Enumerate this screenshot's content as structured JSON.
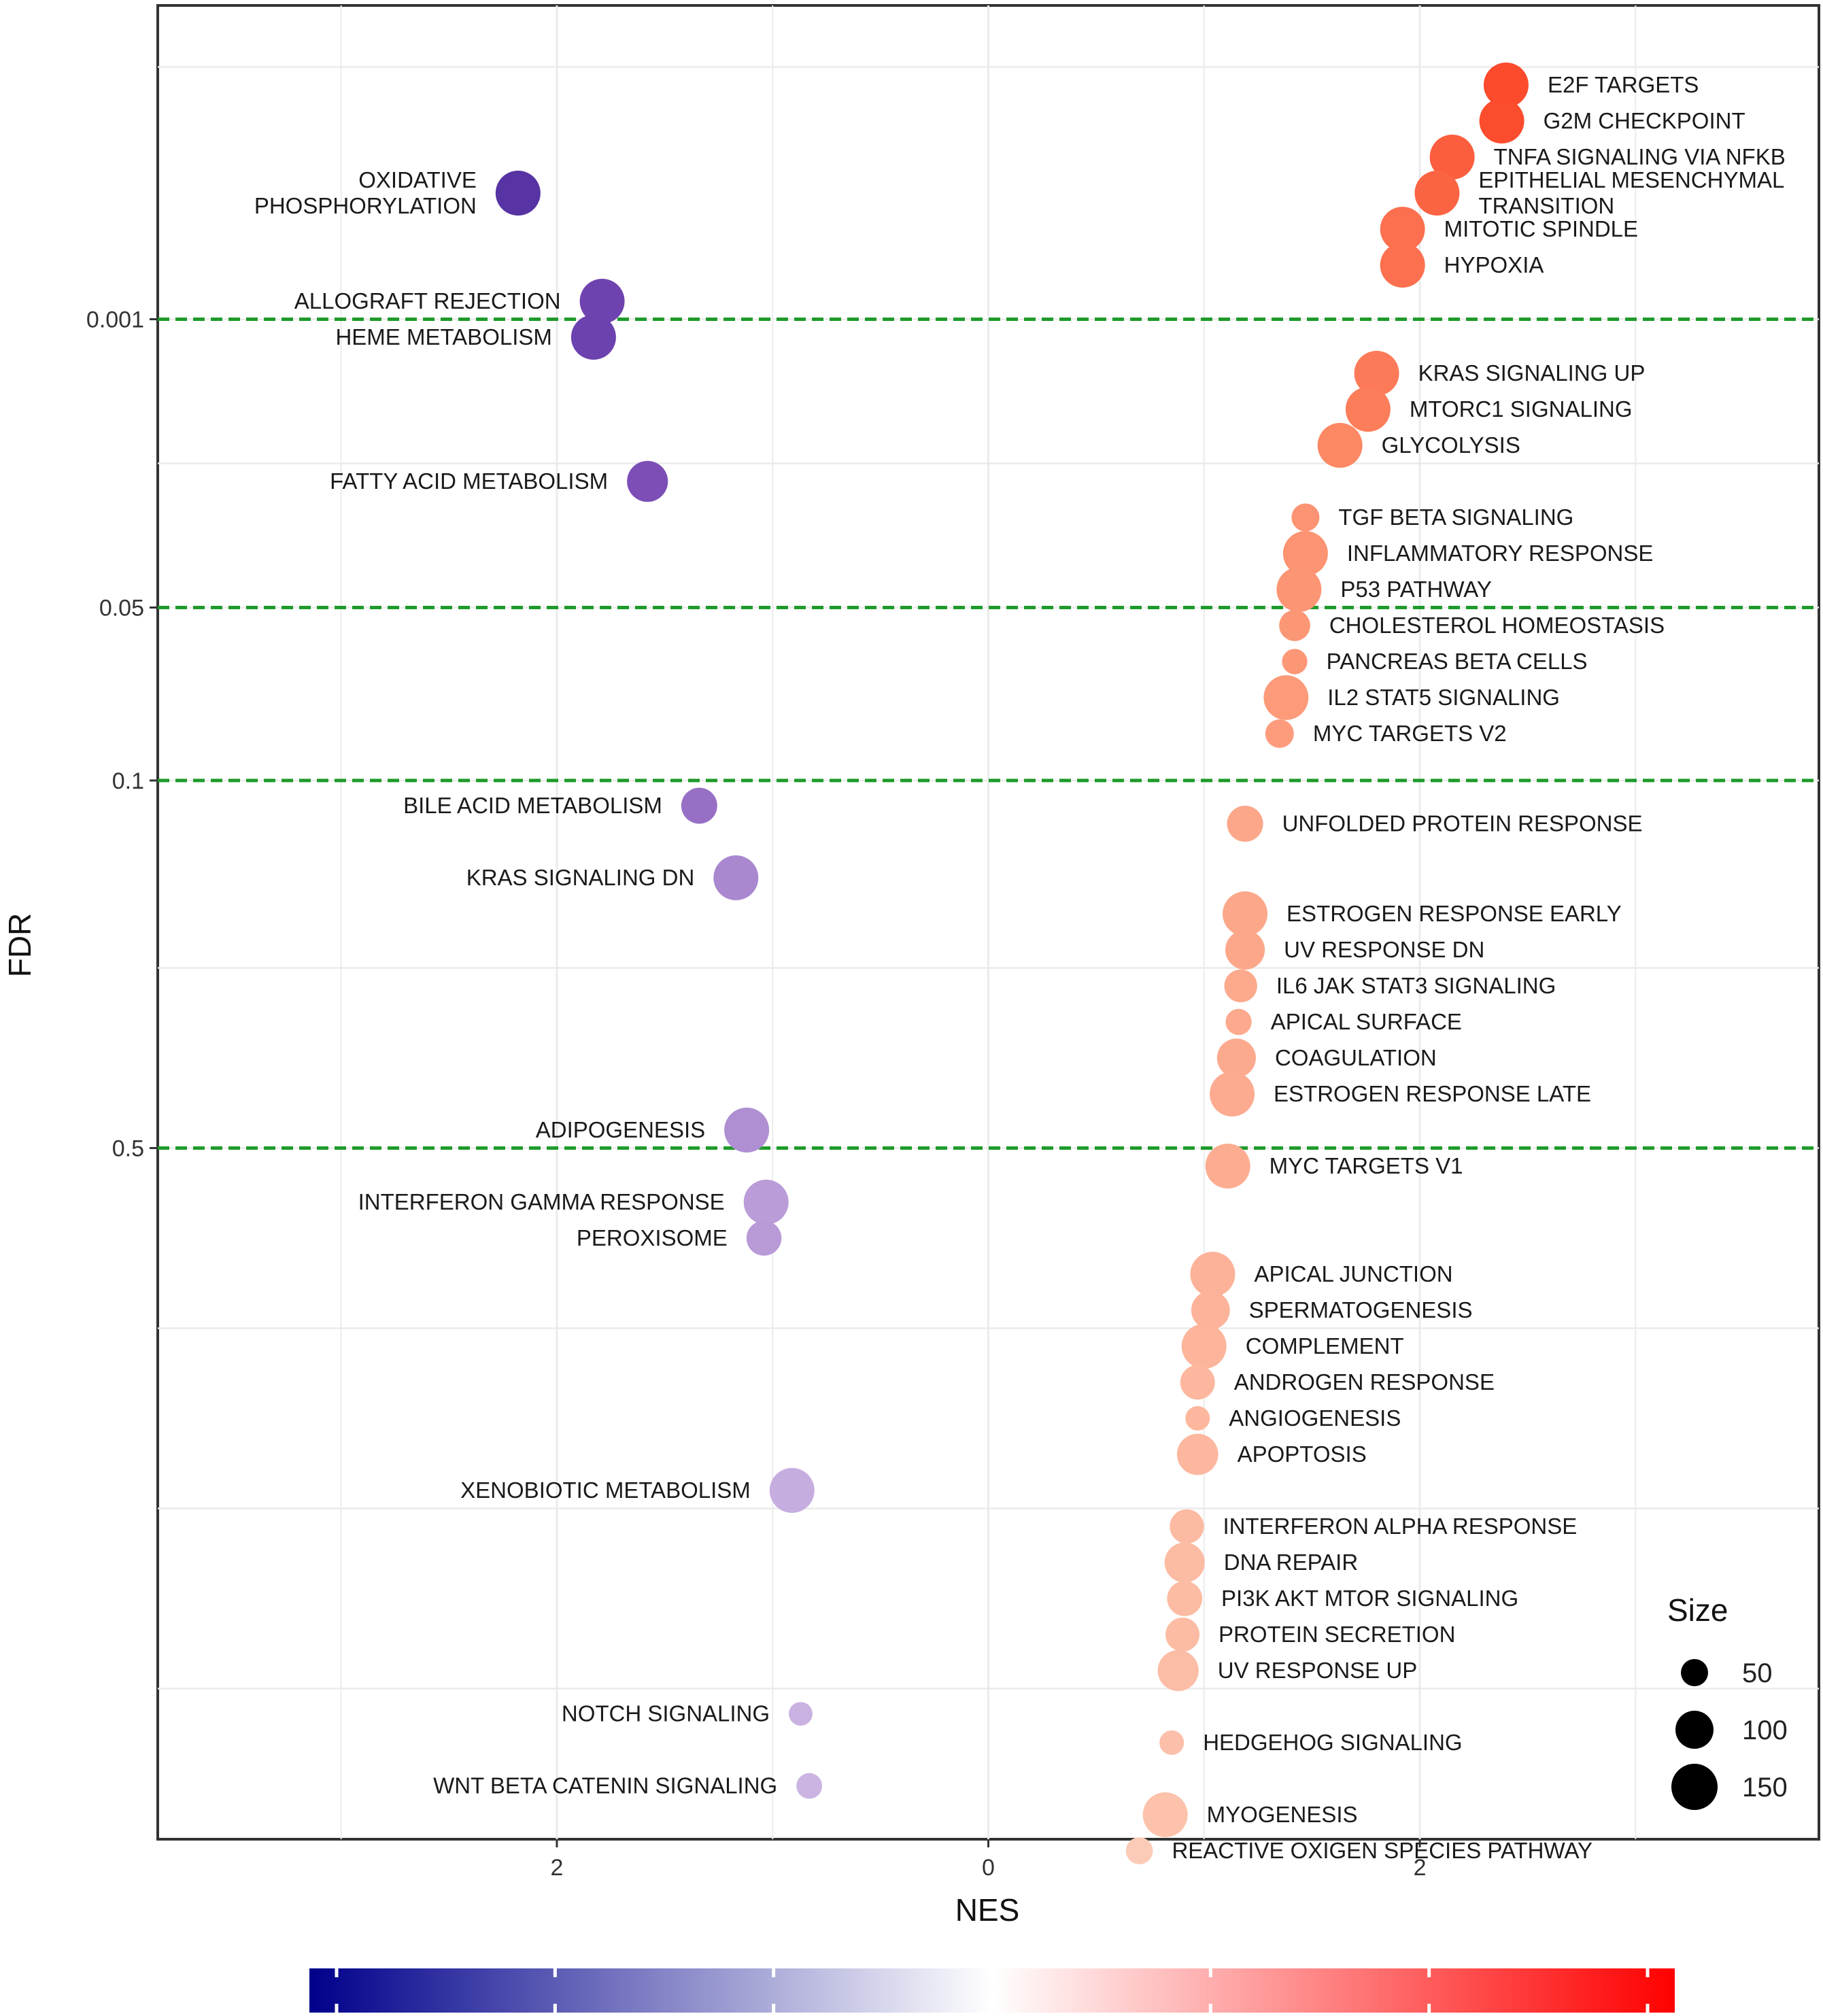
{
  "chart_data": {
    "type": "scatter",
    "xlabel": "NES",
    "ylabel": "FDR",
    "x_tick_labels": [
      "2",
      "0",
      "2"
    ],
    "x_tick_values": [
      -2,
      0,
      2
    ],
    "x_range": [
      -3.85,
      3.85
    ],
    "y_tick_labels": [
      "0.001",
      "0.05",
      "0.1",
      "0.5"
    ],
    "y_tick_values": [
      0.001,
      0.05,
      0.1,
      0.5
    ],
    "y_scale": "log10-reversed (band index)",
    "y_band_range": [
      0,
      50
    ],
    "reference_lines": [
      0.001,
      0.05,
      0.1,
      0.5
    ],
    "reference_line_color": "#1e9a2a",
    "legend": {
      "title": "Size",
      "placement": "bottom-right inside panel",
      "entries": [
        {
          "label": "50",
          "size": 50
        },
        {
          "label": "100",
          "size": 100
        },
        {
          "label": "150",
          "size": 150
        }
      ]
    },
    "colorbar": {
      "placement": "bottom",
      "low_color": "#00008b",
      "mid_color": "#ffffff",
      "high_color": "#ff0000",
      "range": [
        -3,
        3
      ]
    },
    "series": [
      {
        "label": [
          "E2F TARGETS"
        ],
        "nes": 2.4,
        "band": 1.0,
        "size": 200
      },
      {
        "label": [
          "G2M CHECKPOINT"
        ],
        "nes": 2.38,
        "band": 2.0,
        "size": 200
      },
      {
        "label": [
          "TNFA SIGNALING VIA NFKB"
        ],
        "nes": 2.15,
        "band": 3.0,
        "size": 200
      },
      {
        "label": [
          "EPITHELIAL MESENCHYMAL",
          "TRANSITION"
        ],
        "nes": 2.08,
        "band": 4.0,
        "size": 200
      },
      {
        "label": [
          "OXIDATIVE",
          "PHOSPHORYLATION"
        ],
        "nes": -2.18,
        "band": 4.0,
        "size": 200
      },
      {
        "label": [
          "MITOTIC SPINDLE"
        ],
        "nes": 1.92,
        "band": 5.0,
        "size": 199
      },
      {
        "label": [
          "HYPOXIA"
        ],
        "nes": 1.92,
        "band": 6.0,
        "size": 200
      },
      {
        "label": [
          "ALLOGRAFT REJECTION"
        ],
        "nes": -1.79,
        "band": 7.0,
        "size": 200
      },
      {
        "label": [
          "HEME METABOLISM"
        ],
        "nes": -1.83,
        "band": 8.0,
        "size": 200
      },
      {
        "label": [
          "KRAS SIGNALING UP"
        ],
        "nes": 1.8,
        "band": 9.0,
        "size": 200
      },
      {
        "label": [
          "MTORC1 SIGNALING"
        ],
        "nes": 1.76,
        "band": 10.0,
        "size": 200
      },
      {
        "label": [
          "GLYCOLYSIS"
        ],
        "nes": 1.63,
        "band": 11.0,
        "size": 200
      },
      {
        "label": [
          "FATTY ACID METABOLISM"
        ],
        "nes": -1.58,
        "band": 12.0,
        "size": 158
      },
      {
        "label": [
          "TGF BETA SIGNALING"
        ],
        "nes": 1.47,
        "band": 13.0,
        "size": 54
      },
      {
        "label": [
          "INFLAMMATORY RESPONSE"
        ],
        "nes": 1.47,
        "band": 14.0,
        "size": 200
      },
      {
        "label": [
          "P53 PATHWAY"
        ],
        "nes": 1.44,
        "band": 15.0,
        "size": 200
      },
      {
        "label": [
          "CHOLESTEROL HOMEOSTASIS"
        ],
        "nes": 1.42,
        "band": 16.0,
        "size": 74
      },
      {
        "label": [
          "PANCREAS BETA CELLS"
        ],
        "nes": 1.42,
        "band": 17.0,
        "size": 40
      },
      {
        "label": [
          "IL2 STAT5 SIGNALING"
        ],
        "nes": 1.38,
        "band": 18.0,
        "size": 199
      },
      {
        "label": [
          "MYC TARGETS V2"
        ],
        "nes": 1.35,
        "band": 19.0,
        "size": 58
      },
      {
        "label": [
          "BILE ACID METABOLISM"
        ],
        "nes": -1.34,
        "band": 21.0,
        "size": 112
      },
      {
        "label": [
          "UNFOLDED PROTEIN RESPONSE"
        ],
        "nes": 1.19,
        "band": 21.5,
        "size": 113
      },
      {
        "label": [
          "KRAS SIGNALING DN"
        ],
        "nes": -1.17,
        "band": 23.0,
        "size": 200
      },
      {
        "label": [
          "ESTROGEN RESPONSE EARLY"
        ],
        "nes": 1.19,
        "band": 24.0,
        "size": 200
      },
      {
        "label": [
          "UV RESPONSE DN"
        ],
        "nes": 1.19,
        "band": 25.0,
        "size": 144
      },
      {
        "label": [
          "IL6 JAK STAT3 SIGNALING"
        ],
        "nes": 1.17,
        "band": 26.0,
        "size": 87
      },
      {
        "label": [
          "APICAL SURFACE"
        ],
        "nes": 1.16,
        "band": 27.0,
        "size": 44
      },
      {
        "label": [
          "COAGULATION"
        ],
        "nes": 1.15,
        "band": 28.0,
        "size": 138
      },
      {
        "label": [
          "ESTROGEN RESPONSE LATE"
        ],
        "nes": 1.13,
        "band": 29.0,
        "size": 200
      },
      {
        "label": [
          "ADIPOGENESIS"
        ],
        "nes": -1.12,
        "band": 30.0,
        "size": 200
      },
      {
        "label": [
          "MYC TARGETS V1"
        ],
        "nes": 1.11,
        "band": 31.0,
        "size": 200
      },
      {
        "label": [
          "INTERFERON GAMMA RESPONSE"
        ],
        "nes": -1.03,
        "band": 32.0,
        "size": 200
      },
      {
        "label": [
          "PEROXISOME"
        ],
        "nes": -1.04,
        "band": 33.0,
        "size": 104
      },
      {
        "label": [
          "APICAL JUNCTION"
        ],
        "nes": 1.04,
        "band": 34.0,
        "size": 200
      },
      {
        "label": [
          "SPERMATOGENESIS"
        ],
        "nes": 1.03,
        "band": 35.0,
        "size": 135
      },
      {
        "label": [
          "COMPLEMENT"
        ],
        "nes": 1.0,
        "band": 36.0,
        "size": 200
      },
      {
        "label": [
          "ANDROGEN RESPONSE"
        ],
        "nes": 0.97,
        "band": 37.0,
        "size": 101
      },
      {
        "label": [
          "ANGIOGENESIS"
        ],
        "nes": 0.97,
        "band": 38.0,
        "size": 36
      },
      {
        "label": [
          "APOPTOSIS"
        ],
        "nes": 0.97,
        "band": 39.0,
        "size": 161
      },
      {
        "label": [
          "XENOBIOTIC METABOLISM"
        ],
        "nes": -0.91,
        "band": 40.0,
        "size": 200
      },
      {
        "label": [
          "INTERFERON ALPHA RESPONSE"
        ],
        "nes": 0.92,
        "band": 41.0,
        "size": 97
      },
      {
        "label": [
          "DNA REPAIR"
        ],
        "nes": 0.91,
        "band": 42.0,
        "size": 150
      },
      {
        "label": [
          "PI3K AKT MTOR SIGNALING"
        ],
        "nes": 0.91,
        "band": 43.0,
        "size": 105
      },
      {
        "label": [
          "PROTEIN SECRETION"
        ],
        "nes": 0.9,
        "band": 44.0,
        "size": 96
      },
      {
        "label": [
          "UV RESPONSE UP"
        ],
        "nes": 0.88,
        "band": 45.0,
        "size": 158
      },
      {
        "label": [
          "NOTCH SIGNALING"
        ],
        "nes": -0.87,
        "band": 46.2,
        "size": 32
      },
      {
        "label": [
          "HEDGEHOG SIGNALING"
        ],
        "nes": 0.85,
        "band": 47.0,
        "size": 36
      },
      {
        "label": [
          "WNT BETA CATENIN SIGNALING"
        ],
        "nes": -0.83,
        "band": 48.2,
        "size": 42
      },
      {
        "label": [
          "MYOGENESIS"
        ],
        "nes": 0.82,
        "band": 49.0,
        "size": 200
      },
      {
        "label": [
          "REACTIVE OXIGEN SPECIES PATHWAY"
        ],
        "nes": 0.7,
        "band": 50.0,
        "size": 49
      }
    ],
    "fdr_band_map": {
      "0.001": 7.5,
      "0.05": 15.5,
      "0.1": 20.3,
      "0.5": 30.5
    }
  }
}
